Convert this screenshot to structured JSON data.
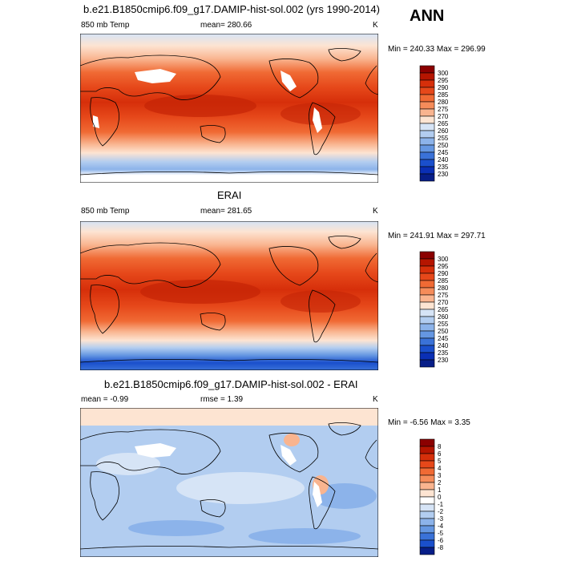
{
  "season": "ANN",
  "panels": [
    {
      "title": "b.e21.B1850cmip6.f09_g17.DAMIP-hist-sol.002 (yrs 1990-2014)",
      "left_label": "850 mb Temp",
      "center_label": "mean= 280.66",
      "right_label": "K",
      "minmax": "Min = 240.33 Max = 296.99",
      "colorbar_ticks": [
        "300",
        "295",
        "290",
        "285",
        "280",
        "275",
        "270",
        "265",
        "260",
        "255",
        "250",
        "245",
        "240",
        "235",
        "230"
      ]
    },
    {
      "title": "ERAI",
      "left_label": "850 mb Temp",
      "center_label": "mean= 281.65",
      "right_label": "K",
      "minmax": "Min = 241.91 Max = 297.71",
      "colorbar_ticks": [
        "300",
        "295",
        "290",
        "285",
        "280",
        "275",
        "270",
        "265",
        "260",
        "255",
        "250",
        "245",
        "240",
        "235",
        "230"
      ]
    },
    {
      "title": "b.e21.B1850cmip6.f09_g17.DAMIP-hist-sol.002 - ERAI",
      "left_label": "mean =  -0.99",
      "center_label": "rmse =   1.39",
      "right_label": "K",
      "minmax": "Min =  -6.56 Max =   3.35",
      "colorbar_ticks": [
        "8",
        "6",
        "5",
        "4",
        "3",
        "2",
        "1",
        "0",
        "-1",
        "-2",
        "-3",
        "-4",
        "-5",
        "-6",
        "-8"
      ]
    }
  ],
  "colors": {
    "temp_scale": [
      "#8b0000",
      "#b51500",
      "#d62f0a",
      "#e6481a",
      "#f06a34",
      "#f58c5a",
      "#f9b48f",
      "#fde4d2",
      "#d6e4f6",
      "#b2cdf0",
      "#8cb3ea",
      "#6597e2",
      "#3a72d8",
      "#1a4fcc",
      "#0a2fb5",
      "#071e88"
    ],
    "diff_scale": [
      "#8b0000",
      "#b51500",
      "#d62f0a",
      "#e6481a",
      "#f06a34",
      "#f58c5a",
      "#f9b48f",
      "#fde4d2",
      "#ffffff",
      "#d6e4f6",
      "#b2cdf0",
      "#8cb3ea",
      "#6597e2",
      "#3a72d8",
      "#1a4fcc",
      "#071e88"
    ]
  }
}
